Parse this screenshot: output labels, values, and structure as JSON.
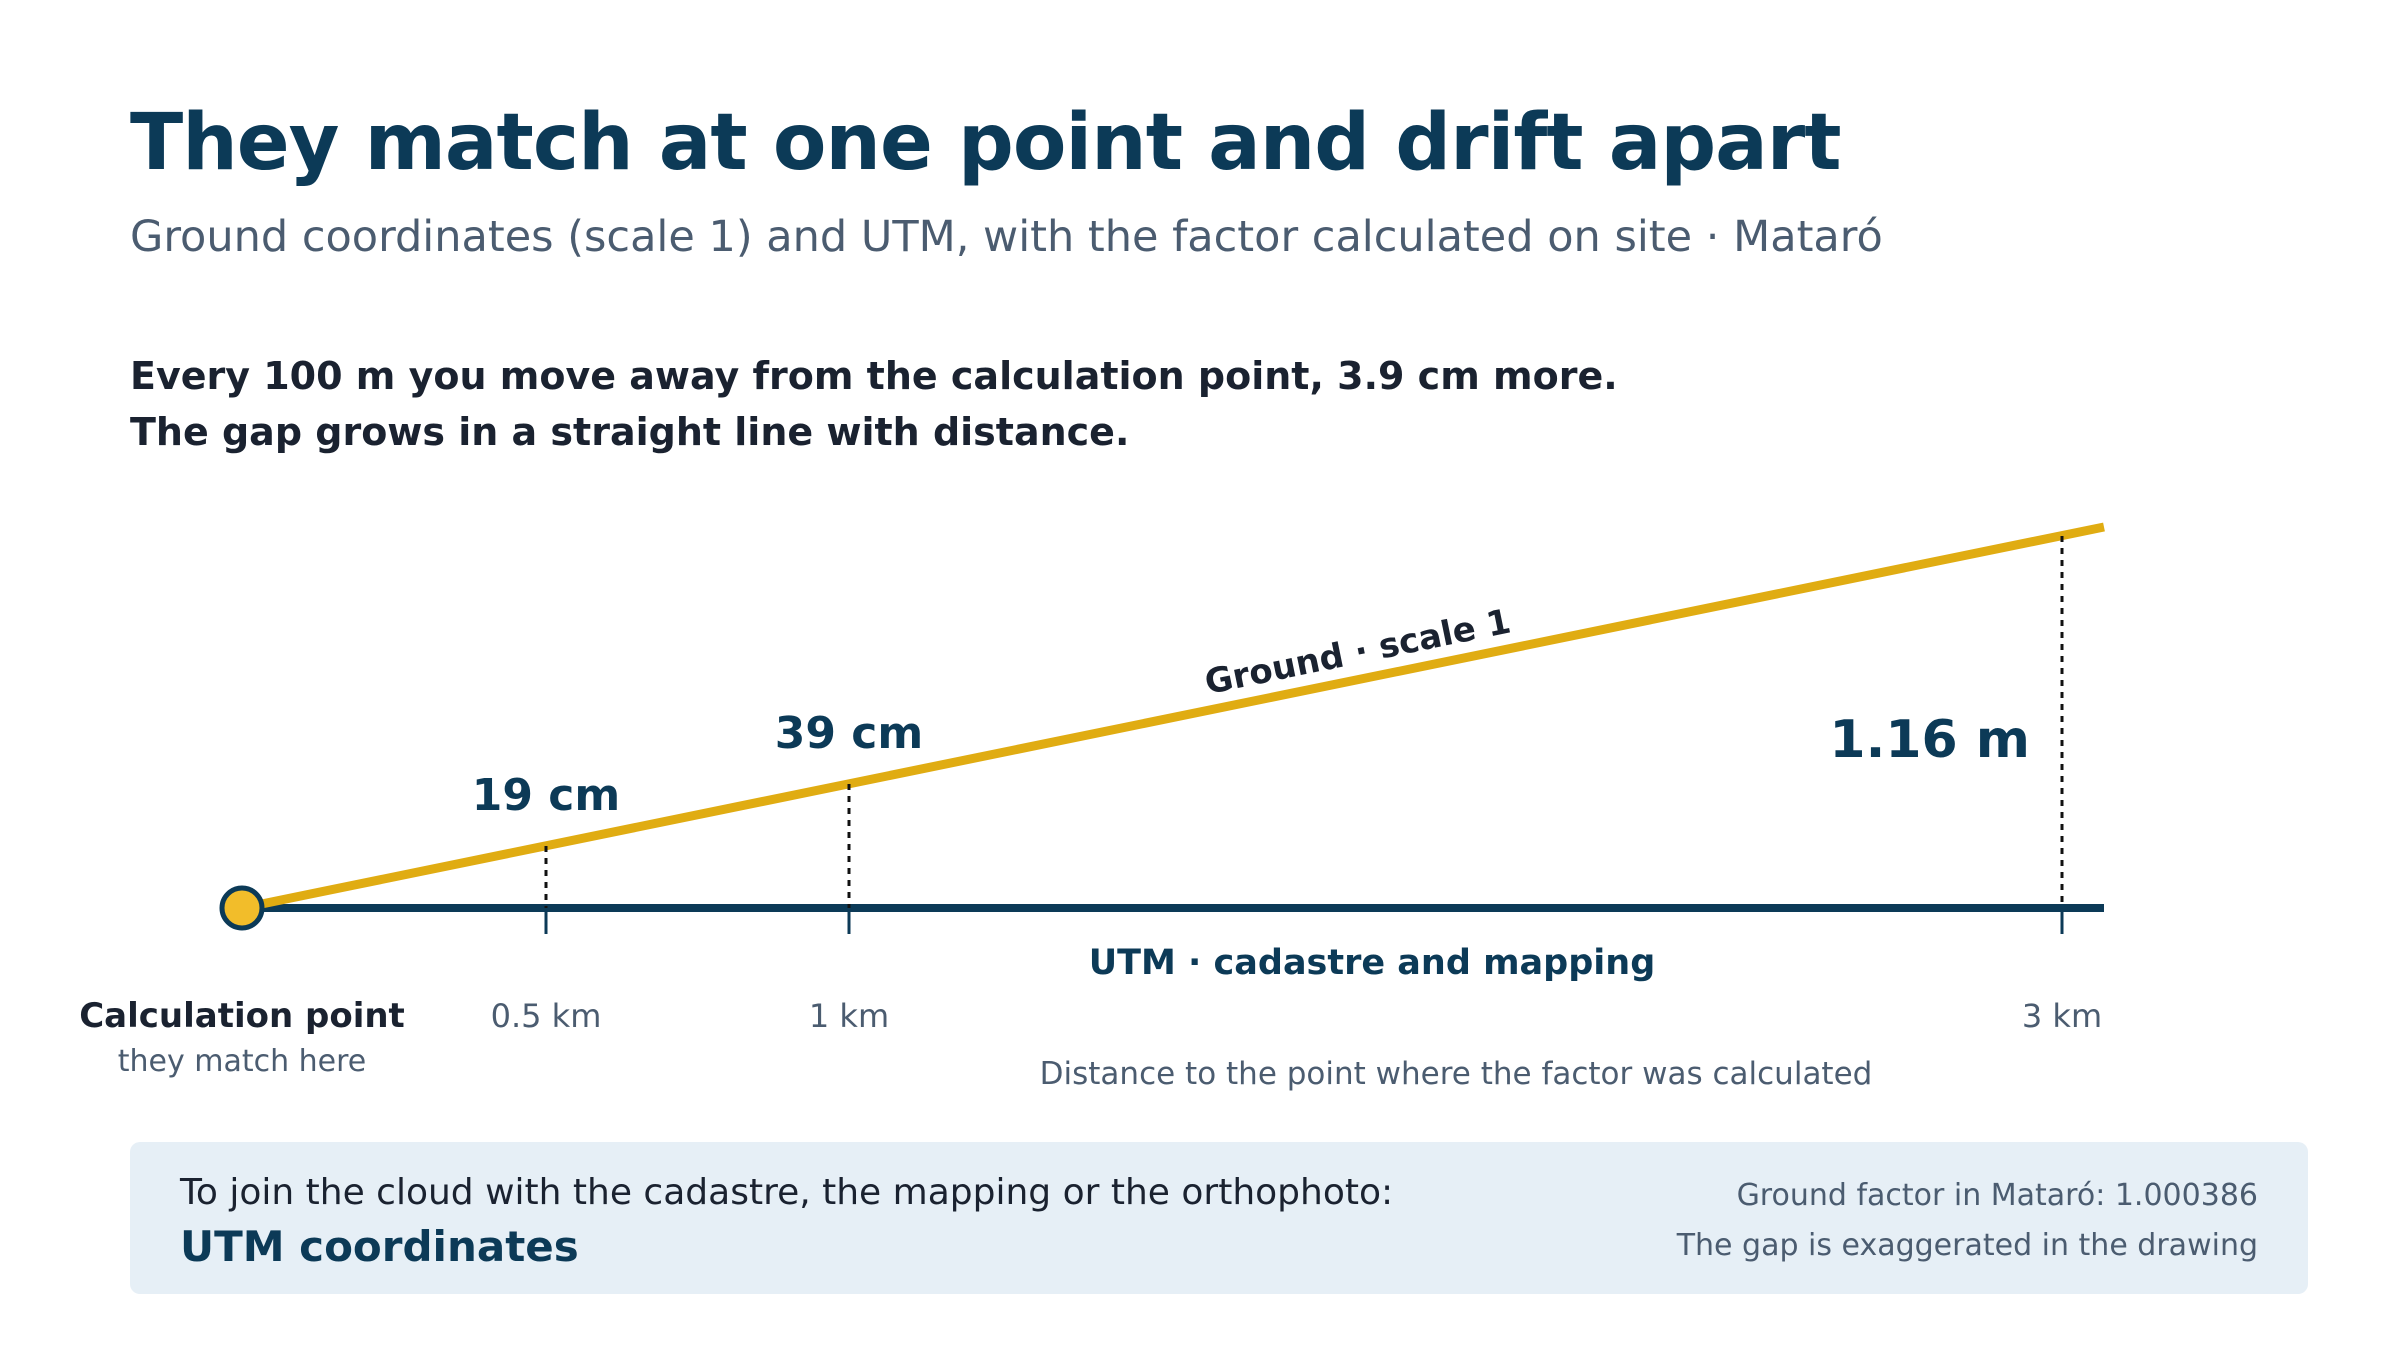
{
  "header": {
    "title": "They match at one point and drift apart",
    "subtitle": "Ground coordinates (scale 1) and UTM, with the factor calculated on site · Mataró"
  },
  "lead": {
    "line1": "Every 100 m you move away from the calculation point, 3.9 cm more.",
    "line2": "The gap grows in a straight line with distance."
  },
  "diagram": {
    "ground_line_label": "Ground · scale 1",
    "utm_line_label": "UTM · cadastre and mapping",
    "origin_label": "Calculation point",
    "origin_sublabel": "they match here",
    "axis_label": "Distance to the point where the factor was calculated",
    "colors": {
      "ground": "#e0ac12",
      "utm": "#0c3a57",
      "origin_fill": "#f2bd2a"
    },
    "gaps": [
      {
        "distance_km": 0.5,
        "distance_label": "0.5 km",
        "gap_label": "19 cm"
      },
      {
        "distance_km": 1,
        "distance_label": "1 km",
        "gap_label": "39 cm"
      },
      {
        "distance_km": 3,
        "distance_label": "3 km",
        "gap_label": "1.16 m"
      }
    ]
  },
  "info": {
    "question": "To join the cloud with the cadastre, the mapping or the orthophoto:",
    "answer": "UTM coordinates",
    "note1": "Ground factor in Mataró: 1.000386",
    "note2": "The gap is exaggerated in the drawing"
  }
}
